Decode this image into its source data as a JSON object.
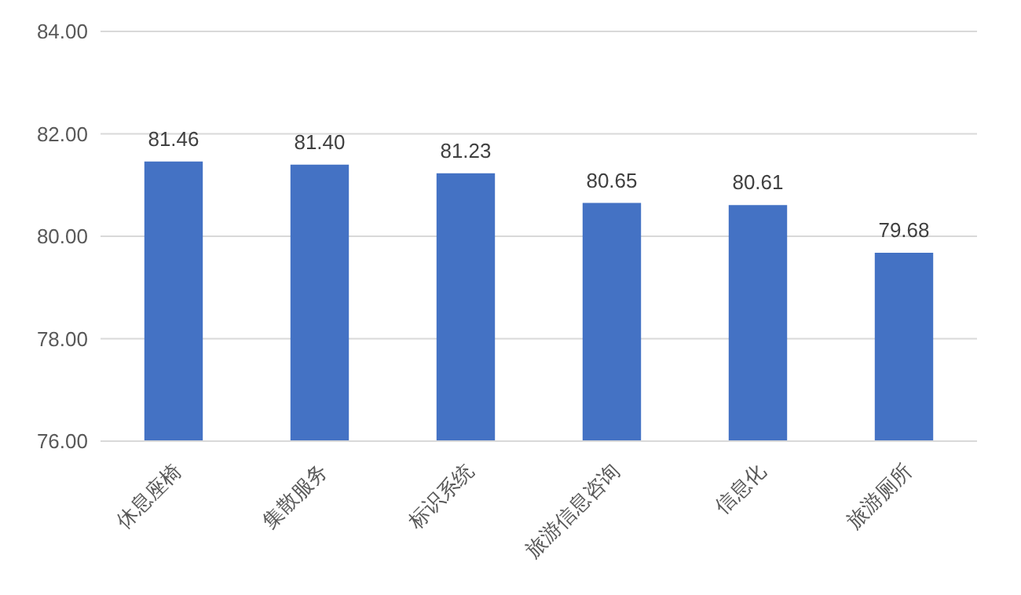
{
  "chart_data": {
    "type": "bar",
    "categories": [
      "休息座椅",
      "集散服务",
      "标识系统",
      "旅游信息咨询",
      "信息化",
      "旅游厕所"
    ],
    "values": [
      81.46,
      81.4,
      81.23,
      80.65,
      80.61,
      79.68
    ],
    "value_labels": [
      "81.46",
      "81.40",
      "81.23",
      "80.65",
      "80.61",
      "79.68"
    ],
    "color": "#4472c4",
    "ylim": [
      76,
      84
    ],
    "yticks": [
      {
        "value": 76,
        "label": "76.00"
      },
      {
        "value": 78,
        "label": "78.00"
      },
      {
        "value": 80,
        "label": "80.00"
      },
      {
        "value": 82,
        "label": "82.00"
      },
      {
        "value": 84,
        "label": "84.00"
      }
    ],
    "grid": "y"
  }
}
